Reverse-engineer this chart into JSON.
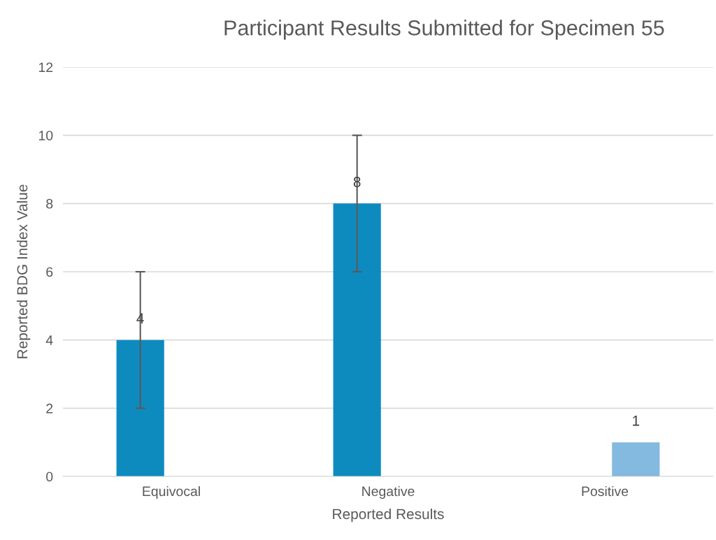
{
  "chart_data": {
    "type": "bar",
    "title": "Participant Results Submitted for Specimen 55",
    "xlabel": "Reported Results",
    "ylabel": "Reported BDG Index Value",
    "categories": [
      "Equivocal",
      "Negative",
      "Positive"
    ],
    "series": [
      {
        "color": "#0e8bbe",
        "values": [
          4,
          8,
          null
        ],
        "errors": [
          2,
          2,
          null
        ]
      },
      {
        "color": "#84b9e0",
        "values": [
          null,
          null,
          1
        ]
      }
    ],
    "ylim": [
      0,
      12
    ],
    "yticks": [
      0,
      2,
      4,
      6,
      8,
      10,
      12
    ],
    "grid": "y",
    "data_labels": true,
    "legend": false
  }
}
